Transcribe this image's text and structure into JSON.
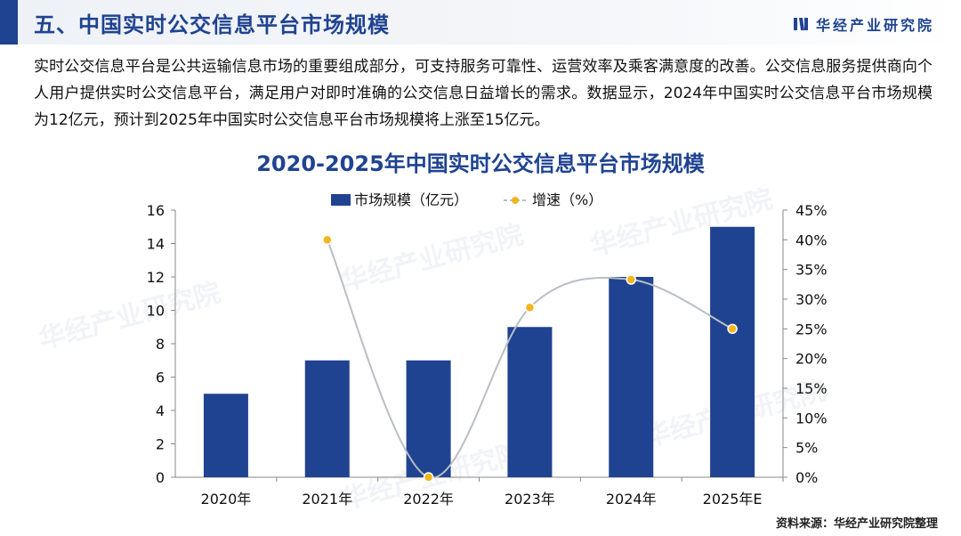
{
  "header": {
    "title": "五、中国实时公交信息平台市场规模",
    "brand": "华经产业研究院"
  },
  "intro": "实时公交信息平台是公共运输信息市场的重要组成部分，可支持服务可靠性、运营效率及乘客满意度的改善。公交信息服务提供商向个人用户提供实时公交信息平台，满足用户对即时准确的公交信息日益增长的需求。数据显示，2024年中国实时公交信息平台市场规模为12亿元，预计到2025年中国实时公交信息平台市场规模将上涨至15亿元。",
  "watermark": "华经产业研究院",
  "source": "资料来源：华经产业研究院整理",
  "colors": {
    "accent": "#1f4391",
    "line": "#b9bec6",
    "marker": "#f2b51f"
  },
  "chart_data": {
    "type": "bar",
    "title": "2020-2025年中国实时公交信息平台市场规模",
    "categories": [
      "2020年",
      "2021年",
      "2022年",
      "2023年",
      "2024年",
      "2025年E"
    ],
    "series": [
      {
        "name": "市场规模（亿元）",
        "type": "bar",
        "axis": "left",
        "values": [
          5,
          7,
          7,
          9,
          12,
          15
        ]
      },
      {
        "name": "增速（%）",
        "type": "line",
        "axis": "right",
        "values": [
          null,
          40,
          0,
          28.6,
          33.3,
          25
        ]
      }
    ],
    "ylim_left": [
      0,
      16
    ],
    "yticks_left": [
      "0",
      "2",
      "4",
      "6",
      "8",
      "10",
      "12",
      "14",
      "16"
    ],
    "ylim_right": [
      0,
      45
    ],
    "yticks_right": [
      "0%",
      "5%",
      "10%",
      "15%",
      "20%",
      "25%",
      "30%",
      "35%",
      "40%",
      "45%"
    ],
    "grid": false,
    "legend": "top-center"
  }
}
